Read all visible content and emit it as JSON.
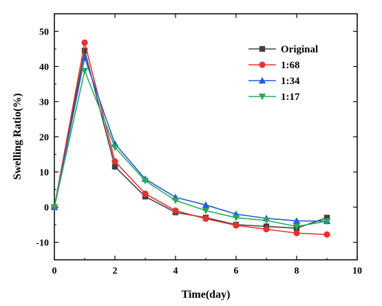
{
  "chart_data": {
    "type": "line",
    "xlabel": "Time(day)",
    "ylabel": "Swelling Ratio(%)",
    "xlim": [
      0,
      10
    ],
    "ylim": [
      -15,
      55
    ],
    "xticks": [
      0,
      2,
      4,
      6,
      8,
      10
    ],
    "yticks": [
      -10,
      0,
      10,
      20,
      30,
      40,
      50
    ],
    "grid": false,
    "legend_position": "top-right",
    "x": [
      0,
      1,
      2,
      3,
      4,
      5,
      6,
      7,
      8,
      9
    ],
    "series": [
      {
        "name": "Original",
        "color": "#404040",
        "marker": "square",
        "values": [
          0,
          44.5,
          11.5,
          3.0,
          -1.5,
          -3.0,
          -5.0,
          -5.5,
          -6.0,
          -3.0
        ]
      },
      {
        "name": "1:68",
        "color": "#e8312f",
        "marker": "circle",
        "values": [
          0,
          46.8,
          13.0,
          3.8,
          -1.0,
          -3.3,
          -5.2,
          -6.3,
          -7.4,
          -7.8
        ]
      },
      {
        "name": "1:34",
        "color": "#1f5fd6",
        "marker": "triangle-up",
        "values": [
          0,
          42.5,
          18.0,
          8.0,
          2.8,
          0.6,
          -2.0,
          -3.2,
          -3.9,
          -4.0
        ]
      },
      {
        "name": "1:17",
        "color": "#2ca85a",
        "marker": "triangle-down",
        "values": [
          0,
          38.8,
          17.0,
          7.5,
          1.9,
          -1.0,
          -3.0,
          -3.8,
          -5.5,
          -4.0
        ]
      }
    ]
  }
}
